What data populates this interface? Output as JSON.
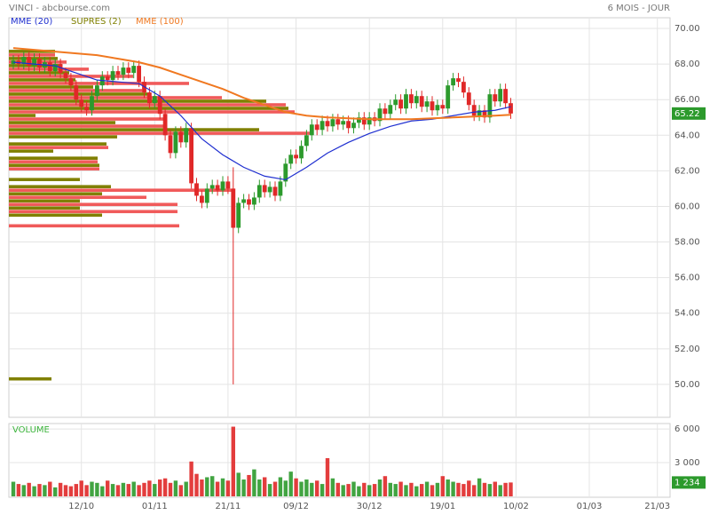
{
  "chart_data": [
    {
      "type": "candlestick",
      "title": "VINCI - abcbourse.com",
      "subtitle": "6 MOIS - JOUR",
      "categories": [
        null,
        null,
        null,
        null,
        null,
        null,
        null,
        null,
        null,
        null,
        null,
        null,
        null,
        "12/10",
        null,
        null,
        null,
        null,
        null,
        null,
        null,
        null,
        null,
        null,
        null,
        null,
        null,
        "01/11",
        null,
        null,
        null,
        null,
        null,
        null,
        null,
        null,
        null,
        null,
        null,
        null,
        null,
        "21/11",
        null,
        null,
        null,
        null,
        null,
        null,
        null,
        null,
        null,
        null,
        null,
        null,
        "09/12",
        null,
        null,
        null,
        null,
        null,
        null,
        null,
        null,
        null,
        null,
        null,
        null,
        null,
        "30/12",
        null,
        null,
        null,
        null,
        null,
        null,
        null,
        null,
        null,
        null,
        null,
        null,
        null,
        "19/01",
        null,
        null,
        null,
        null,
        null,
        null,
        null,
        null,
        null,
        null,
        null,
        null,
        null,
        "10/02",
        null,
        null,
        null,
        null,
        null,
        null,
        null,
        null,
        null,
        null,
        null,
        null,
        null,
        "01/03",
        null,
        null,
        null,
        null,
        null,
        null,
        null,
        null,
        null,
        null,
        null,
        null,
        "21/03"
      ],
      "open": [
        68.0,
        68.2,
        68.0,
        68.4,
        67.9,
        68.3,
        67.8,
        68.1,
        67.6,
        68.0,
        67.5,
        67.2,
        66.8,
        66.0,
        65.6,
        65.4,
        66.2,
        66.8,
        67.3,
        67.1,
        67.6,
        67.4,
        67.8,
        67.5,
        67.9,
        67.0,
        66.4,
        65.8,
        66.2,
        65.2,
        64.0,
        63.0,
        64.2,
        63.6,
        64.4,
        61.3,
        60.6,
        60.2,
        61.0,
        61.2,
        60.9,
        61.4,
        61.0,
        58.8,
        60.2,
        60.4,
        60.1,
        60.5,
        61.2,
        60.8,
        61.1,
        60.6,
        61.4,
        62.4,
        62.9,
        62.7,
        63.4,
        64.0,
        64.6,
        64.3,
        64.8,
        64.5,
        64.9,
        64.6,
        64.8,
        64.4,
        64.7,
        65.0,
        64.6,
        65.0,
        64.8,
        65.5,
        65.2,
        65.7,
        66.0,
        65.5,
        66.3,
        65.8,
        66.2,
        65.6,
        65.9,
        65.4,
        65.7,
        65.5,
        66.8,
        67.2,
        67.0,
        66.4,
        65.7,
        65.1,
        65.4,
        65.0,
        66.3,
        65.9,
        66.6,
        65.8,
        null,
        null,
        null,
        null,
        null,
        null,
        null,
        null,
        null,
        null,
        null,
        null,
        null,
        null,
        null,
        null,
        null,
        null,
        null,
        null,
        null,
        null,
        null,
        null,
        null,
        null,
        null,
        null
      ],
      "high": [
        68.5,
        68.5,
        68.7,
        68.7,
        68.6,
        68.6,
        68.4,
        68.4,
        68.3,
        68.3,
        67.8,
        67.5,
        67.1,
        66.3,
        65.9,
        66.5,
        67.1,
        67.6,
        67.6,
        67.9,
        67.9,
        68.1,
        68.1,
        68.2,
        68.2,
        67.3,
        66.7,
        66.5,
        66.5,
        65.5,
        64.3,
        64.5,
        64.5,
        64.7,
        64.7,
        61.6,
        60.9,
        61.3,
        61.5,
        61.5,
        61.7,
        61.7,
        62.2,
        60.5,
        60.7,
        60.7,
        60.8,
        61.5,
        61.5,
        61.4,
        61.4,
        61.7,
        62.7,
        63.2,
        63.2,
        63.7,
        64.3,
        64.9,
        64.9,
        65.1,
        65.1,
        65.2,
        65.2,
        65.1,
        65.1,
        65.0,
        65.3,
        65.3,
        65.3,
        65.3,
        65.8,
        65.8,
        66.0,
        66.3,
        66.3,
        66.6,
        66.6,
        66.5,
        66.5,
        66.2,
        66.2,
        66.0,
        66.0,
        67.1,
        67.5,
        67.5,
        67.3,
        66.7,
        66.0,
        65.7,
        65.7,
        66.6,
        66.6,
        66.9,
        66.9,
        66.1,
        null,
        null,
        null,
        null,
        null,
        null,
        null,
        null,
        null,
        null,
        null,
        null,
        null,
        null,
        null,
        null,
        null,
        null,
        null,
        null,
        null,
        null,
        null,
        null,
        null,
        null,
        null,
        null
      ],
      "low": [
        67.7,
        67.7,
        67.7,
        67.6,
        67.6,
        67.5,
        67.5,
        67.3,
        67.3,
        67.2,
        66.9,
        66.5,
        65.7,
        65.3,
        65.1,
        65.1,
        65.9,
        66.5,
        66.8,
        66.8,
        67.1,
        67.1,
        67.2,
        67.2,
        66.7,
        66.1,
        65.5,
        65.5,
        64.9,
        63.7,
        62.7,
        62.7,
        63.3,
        63.3,
        61.0,
        60.3,
        59.9,
        59.9,
        60.7,
        60.6,
        60.6,
        60.7,
        50.0,
        58.5,
        59.9,
        59.8,
        59.8,
        60.2,
        60.5,
        60.5,
        60.3,
        60.3,
        61.1,
        62.1,
        62.4,
        62.4,
        63.1,
        63.7,
        64.0,
        64.0,
        64.2,
        64.2,
        64.3,
        64.3,
        64.1,
        64.1,
        64.4,
        64.3,
        64.3,
        64.5,
        64.5,
        64.9,
        64.9,
        65.4,
        65.2,
        65.2,
        65.5,
        65.5,
        65.3,
        65.3,
        65.1,
        65.1,
        65.2,
        65.2,
        66.5,
        66.7,
        66.1,
        65.4,
        64.8,
        64.8,
        64.7,
        64.7,
        65.6,
        65.6,
        65.5,
        64.92,
        null,
        null,
        null,
        null,
        null,
        null,
        null,
        null,
        null,
        null,
        null,
        null,
        null,
        null,
        null,
        null,
        null,
        null,
        null,
        null,
        null,
        null,
        null,
        null,
        null,
        null,
        null,
        null
      ],
      "close": [
        68.2,
        68.0,
        68.4,
        67.9,
        68.3,
        67.8,
        68.1,
        67.6,
        68.0,
        67.5,
        67.2,
        66.8,
        66.0,
        65.6,
        65.4,
        66.2,
        66.8,
        67.3,
        67.1,
        67.6,
        67.4,
        67.8,
        67.5,
        67.9,
        67.0,
        66.4,
        65.8,
        66.2,
        65.2,
        64.0,
        63.0,
        64.2,
        63.6,
        64.4,
        61.3,
        60.6,
        60.2,
        61.0,
        61.2,
        60.9,
        61.4,
        61.0,
        58.8,
        60.2,
        60.4,
        60.1,
        60.5,
        61.2,
        60.8,
        61.1,
        60.6,
        61.4,
        62.4,
        62.9,
        62.7,
        63.4,
        64.0,
        64.6,
        64.3,
        64.8,
        64.5,
        64.9,
        64.6,
        64.8,
        64.4,
        64.7,
        65.0,
        64.6,
        65.0,
        64.8,
        65.5,
        65.2,
        65.7,
        66.0,
        65.5,
        66.3,
        65.8,
        66.2,
        65.6,
        65.9,
        65.4,
        65.7,
        65.5,
        66.8,
        67.2,
        67.0,
        66.4,
        65.7,
        65.1,
        65.4,
        65.0,
        66.3,
        65.9,
        66.6,
        65.8,
        65.22,
        null,
        null,
        null,
        null,
        null,
        null,
        null,
        null,
        null,
        null,
        null,
        null,
        null,
        null,
        null,
        null,
        null,
        null,
        null,
        null,
        null,
        null,
        null,
        null,
        null,
        null,
        null,
        null
      ],
      "up_color": "#2c9a2c",
      "down_color": "#e02828",
      "series": [
        {
          "name": "MME (20)",
          "color": "#1f2fd0",
          "x": [
            0,
            4,
            8,
            12,
            16,
            20,
            24,
            28,
            32,
            36,
            40,
            44,
            48,
            52,
            56,
            60,
            64,
            68,
            72,
            76,
            80,
            84,
            88,
            92,
            95
          ],
          "values": [
            68.1,
            68.0,
            67.9,
            67.5,
            67.1,
            67.0,
            66.9,
            66.2,
            65.1,
            63.8,
            62.9,
            62.2,
            61.7,
            61.5,
            62.2,
            63.0,
            63.6,
            64.1,
            64.5,
            64.8,
            64.9,
            65.1,
            65.3,
            65.4,
            65.6
          ]
        },
        {
          "name": "MME (100)",
          "color": "#f07820",
          "x": [
            0,
            4,
            8,
            12,
            16,
            20,
            24,
            28,
            32,
            36,
            40,
            44,
            48,
            52,
            56,
            60,
            64,
            68,
            72,
            76,
            80,
            84,
            88,
            92,
            95
          ],
          "values": [
            68.9,
            68.8,
            68.7,
            68.6,
            68.5,
            68.3,
            68.1,
            67.8,
            67.4,
            67.0,
            66.6,
            66.1,
            65.7,
            65.3,
            65.1,
            65.0,
            64.95,
            64.9,
            64.9,
            64.9,
            64.95,
            65.0,
            65.05,
            65.1,
            65.15
          ]
        }
      ],
      "profile": {
        "name": "SUPRES (2)",
        "color": "#808000",
        "levels": [
          68.6,
          68.2,
          67.8,
          67.4,
          67.0,
          66.6,
          66.2,
          65.8,
          65.4,
          65.0,
          64.6,
          64.2,
          63.8,
          63.4,
          63.0,
          62.6,
          62.2,
          61.8,
          61.4,
          61.0,
          60.6,
          60.2,
          59.8,
          59.4,
          59.0,
          50.2
        ],
        "series": [
          {
            "color": "#808000",
            "values": [
              52,
              55,
              60,
              68,
              75,
              95,
              160,
              290,
              315,
              30,
              120,
              282,
              122,
              110,
              50,
              100,
              102,
              0,
              80,
              115,
              105,
              80,
              80,
              105,
              0,
              48
            ]
          },
          {
            "color": "#f05a5a",
            "values": [
              52,
              65,
              90,
              140,
              203,
              150,
              240,
              312,
              322,
              175,
              178,
              340,
              0,
              112,
              0,
              100,
              102,
              0,
              0,
              255,
              155,
              190,
              190,
              0,
              192,
              0
            ]
          }
        ]
      },
      "last_value": 65.22,
      "last_color": "#2c9a2c",
      "ylim": [
        48.15,
        70.6
      ],
      "yticks": [
        {
          "value": 50,
          "label": "50.00"
        },
        {
          "value": 52,
          "label": "52.00"
        },
        {
          "value": 54,
          "label": "54.00"
        },
        {
          "value": 56,
          "label": "56.00"
        },
        {
          "value": 58,
          "label": "58.00"
        },
        {
          "value": 60,
          "label": "60.00"
        },
        {
          "value": 62,
          "label": "62.00"
        },
        {
          "value": 64,
          "label": "64.00"
        },
        {
          "value": 66,
          "label": "66.00"
        },
        {
          "value": 68,
          "label": "68.00"
        },
        {
          "value": 70,
          "label": "70.00"
        }
      ],
      "grid": true
    },
    {
      "type": "bar",
      "title": "VOLUME",
      "title_color": "#3cb43c",
      "values": [
        1300,
        1100,
        1000,
        1200,
        900,
        1100,
        1000,
        1300,
        800,
        1200,
        1000,
        900,
        1100,
        1400,
        1000,
        1300,
        1200,
        900,
        1400,
        1100,
        1000,
        1200,
        1100,
        1300,
        1000,
        1200,
        1400,
        1100,
        1500,
        1600,
        1200,
        1400,
        1000,
        1300,
        3100,
        2000,
        1500,
        1700,
        1800,
        1300,
        1600,
        1400,
        6200,
        2100,
        1500,
        1900,
        2400,
        1500,
        1700,
        1100,
        1300,
        1700,
        1400,
        2200,
        1600,
        1300,
        1500,
        1200,
        1400,
        1100,
        3400,
        1600,
        1200,
        1000,
        1100,
        1300,
        900,
        1200,
        1000,
        1100,
        1500,
        1800,
        1200,
        1100,
        1300,
        1000,
        1200,
        900,
        1100,
        1300,
        1000,
        1200,
        1800,
        1500,
        1300,
        1200,
        1100,
        1400,
        1000,
        1600,
        1200,
        1100,
        1300,
        1000,
        1200,
        1234
      ],
      "last_value": {
        "value": 1234,
        "label": "1 234"
      },
      "ylim": [
        0,
        6400
      ],
      "yticks": [
        {
          "value": 3000,
          "label": "3 000"
        },
        {
          "value": 6000,
          "label": "6 000"
        }
      ],
      "grid": true
    }
  ]
}
